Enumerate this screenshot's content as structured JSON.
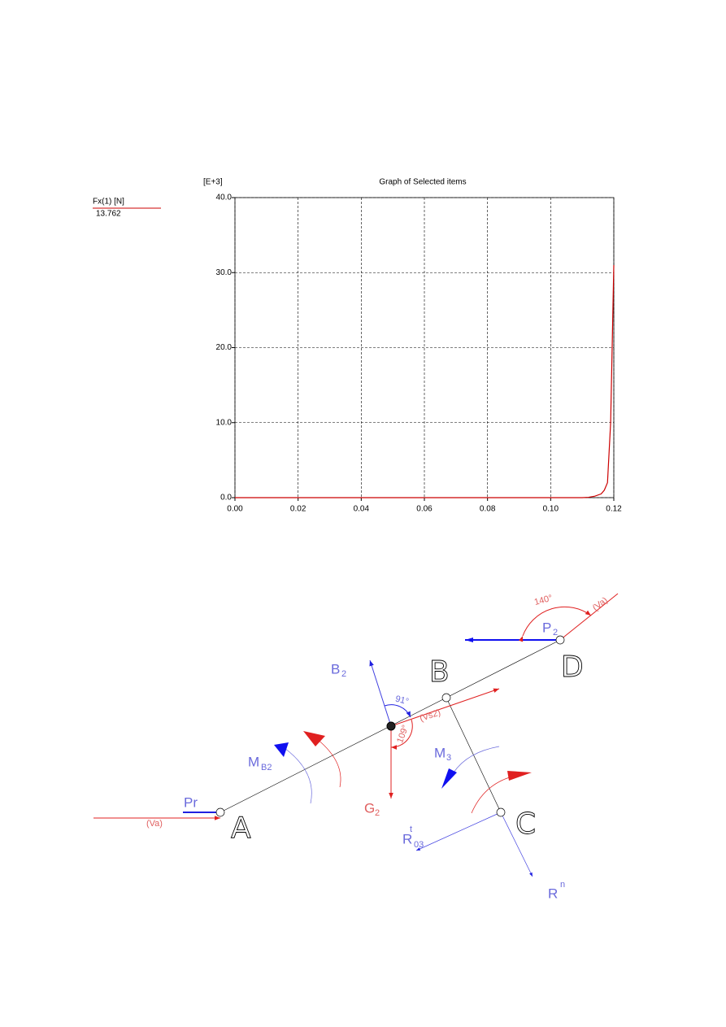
{
  "chart_data": {
    "type": "line",
    "title": "Graph of Selected items",
    "y_scale_label": "[E+3]",
    "x": [
      0,
      0.02,
      0.04,
      0.06,
      0.08,
      0.1,
      0.11,
      0.112,
      0.114,
      0.116,
      0.117,
      0.118,
      0.119,
      0.12
    ],
    "series": [
      {
        "name": "Fx(1) [N]",
        "color": "#cc0000",
        "values": [
          0,
          0,
          0,
          0,
          0,
          0,
          0,
          0.05,
          0.2,
          0.5,
          1.0,
          2.0,
          10,
          31
        ]
      }
    ],
    "legend_readout": 13.762,
    "xlim": [
      0,
      0.12
    ],
    "ylim": [
      0,
      40
    ],
    "xticks": [
      {
        "value": 0,
        "label": "0.00"
      },
      {
        "value": 0.02,
        "label": "0.02"
      },
      {
        "value": 0.04,
        "label": "0.04"
      },
      {
        "value": 0.06,
        "label": "0.06"
      },
      {
        "value": 0.08,
        "label": "0.08"
      },
      {
        "value": 0.1,
        "label": "0.10"
      },
      {
        "value": 0.12,
        "label": "0.12"
      }
    ],
    "yticks": [
      {
        "value": 0,
        "label": "0.0"
      },
      {
        "value": 10,
        "label": "10.0"
      },
      {
        "value": 20,
        "label": "20.0"
      },
      {
        "value": 30,
        "label": "30.0"
      },
      {
        "value": 40,
        "label": "40.0"
      }
    ],
    "grid": true
  },
  "diagram": {
    "points": [
      "A",
      "B",
      "C",
      "D"
    ],
    "forces": {
      "pr": "Pr",
      "p": "P",
      "p_sub": "2",
      "b": "B",
      "b_sub": "2",
      "g": "G",
      "g_sub": "2",
      "m": "M",
      "m_sub": "B2",
      "m3": "M",
      "m3_sub": "3",
      "rt": "R",
      "rt_sup": "t",
      "rt_sub": "03",
      "rn": "R",
      "rn_sup": "n"
    },
    "velocities": {
      "va_a": "(Va)",
      "va_d": "(Va)",
      "vs2": "(Vs2)"
    },
    "angles": {
      "d": "140°",
      "b": "91°",
      "g": "109°"
    }
  }
}
